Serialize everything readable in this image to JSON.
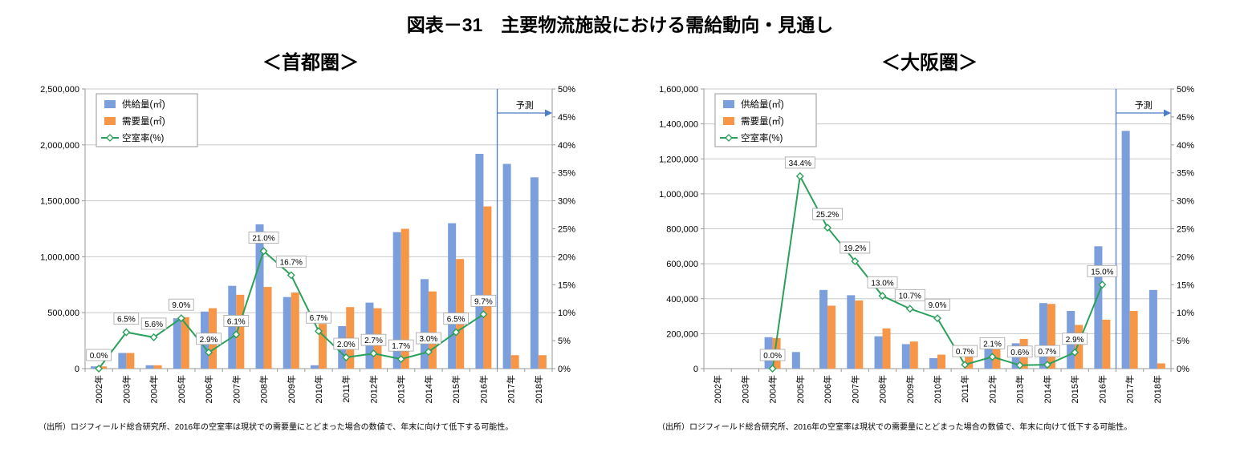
{
  "page_title": "図表－31　主要物流施設における需給動向・見通し",
  "chart_data": [
    {
      "type": "bar",
      "subtype": "combo-bar-line",
      "title": "＜首都圏＞",
      "categories": [
        "2002年",
        "2003年",
        "2004年",
        "2005年",
        "2006年",
        "2007年",
        "2008年",
        "2009年",
        "2010年",
        "2011年",
        "2012年",
        "2013年",
        "2014年",
        "2015年",
        "2016年",
        "2017年",
        "2018年"
      ],
      "series": [
        {
          "name": "供給量(㎡)",
          "kind": "bar",
          "axis": "left",
          "color": "#7B9EDC",
          "values": [
            20000,
            140000,
            30000,
            450000,
            510000,
            740000,
            1290000,
            640000,
            30000,
            380000,
            590000,
            1220000,
            800000,
            1300000,
            1920000,
            1830000,
            1710000
          ]
        },
        {
          "name": "需要量(㎡)",
          "kind": "bar",
          "axis": "left",
          "color": "#F79646",
          "values": [
            20000,
            140000,
            30000,
            460000,
            540000,
            660000,
            730000,
            680000,
            400000,
            550000,
            540000,
            1250000,
            690000,
            980000,
            1450000,
            120000,
            120000
          ]
        },
        {
          "name": "空室率(%)",
          "kind": "line",
          "axis": "right",
          "color": "#2BA05A",
          "values": [
            0.0,
            6.5,
            5.6,
            9.0,
            2.9,
            6.1,
            21.0,
            16.7,
            6.7,
            2.0,
            2.7,
            1.7,
            3.0,
            6.5,
            9.7,
            null,
            null
          ]
        }
      ],
      "ylim_left": [
        0,
        2500000
      ],
      "yticks_left": [
        "0",
        "500,000",
        "1,000,000",
        "1,500,000",
        "2,000,000",
        "2,500,000"
      ],
      "ylim_right": [
        0,
        50
      ],
      "yticks_right": [
        "0%",
        "5%",
        "10%",
        "15%",
        "20%",
        "25%",
        "30%",
        "35%",
        "40%",
        "45%",
        "50%"
      ],
      "grid": true,
      "legend_position": "top-left",
      "forecast": {
        "label": "予測",
        "boundary_category": "2017年"
      },
      "source": "（出所）ロジフィールド総合研究所、2016年の空室率は現状での需要量にとどまった場合の数値で、年末に向けて低下する可能性。"
    },
    {
      "type": "bar",
      "subtype": "combo-bar-line",
      "title": "＜大阪圏＞",
      "categories": [
        "2002年",
        "2003年",
        "2004年",
        "2005年",
        "2006年",
        "2007年",
        "2008年",
        "2009年",
        "2010年",
        "2011年",
        "2012年",
        "2013年",
        "2014年",
        "2015年",
        "2016年",
        "2017年",
        "2018年"
      ],
      "series": [
        {
          "name": "供給量(㎡)",
          "kind": "bar",
          "axis": "left",
          "color": "#7B9EDC",
          "values": [
            0,
            0,
            180000,
            95000,
            450000,
            420000,
            185000,
            140000,
            60000,
            0,
            140000,
            145000,
            375000,
            330000,
            700000,
            1360000,
            450000
          ]
        },
        {
          "name": "需要量(㎡)",
          "kind": "bar",
          "axis": "left",
          "color": "#F79646",
          "values": [
            0,
            0,
            175000,
            0,
            360000,
            390000,
            230000,
            155000,
            80000,
            130000,
            110000,
            170000,
            370000,
            250000,
            280000,
            330000,
            30000
          ]
        },
        {
          "name": "空室率(%)",
          "kind": "line",
          "axis": "right",
          "color": "#2BA05A",
          "values": [
            null,
            null,
            0.0,
            34.4,
            25.2,
            19.2,
            13.0,
            10.7,
            9.0,
            0.7,
            2.1,
            0.6,
            0.7,
            2.9,
            15.0,
            null,
            null
          ]
        }
      ],
      "ylim_left": [
        0,
        1600000
      ],
      "yticks_left": [
        "0",
        "200,000",
        "400,000",
        "600,000",
        "800,000",
        "1,000,000",
        "1,200,000",
        "1,400,000",
        "1,600,000"
      ],
      "ylim_right": [
        0,
        50
      ],
      "yticks_right": [
        "0%",
        "5%",
        "10%",
        "15%",
        "20%",
        "25%",
        "30%",
        "35%",
        "40%",
        "45%",
        "50%"
      ],
      "grid": true,
      "legend_position": "top-left",
      "forecast": {
        "label": "予測",
        "boundary_category": "2017年"
      },
      "source": "（出所）ロジフィールド総合研究所、2016年の空室率は現状での需要量にとどまった場合の数値で、年末に向けて低下する可能性。"
    }
  ]
}
